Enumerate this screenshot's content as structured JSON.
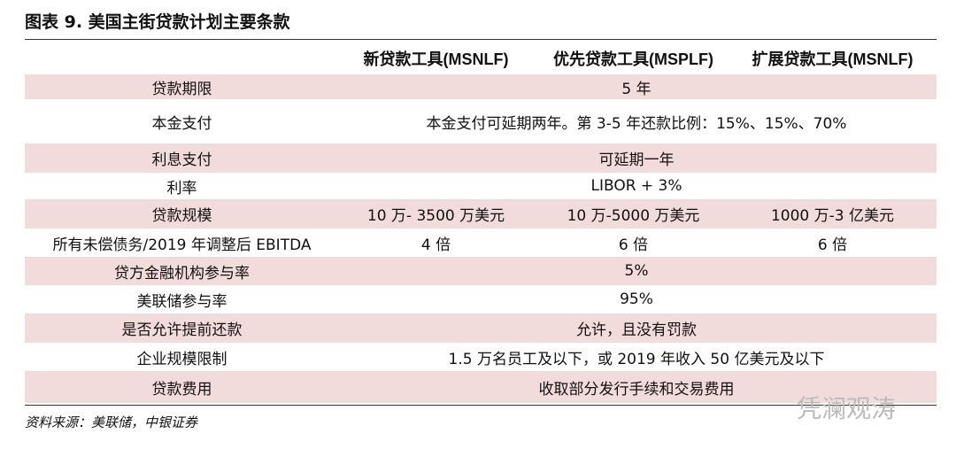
{
  "header": {
    "title": "图表 9. 美国主街贷款计划主要条款"
  },
  "table": {
    "columns": [
      "新贷款工具(MSNLF)",
      "优先贷款工具(MSPLF)",
      "扩展贷款工具(MSNLF)"
    ],
    "rows": [
      {
        "label": "贷款期限",
        "cells": [
          "5 年"
        ]
      },
      {
        "label": "本金支付",
        "cells": [
          "本金支付可延期两年。第 3-5 年还款比例：15%、15%、70%"
        ]
      },
      {
        "label": "利息支付",
        "cells": [
          "可延期一年"
        ]
      },
      {
        "label": "利率",
        "cells": [
          "LIBOR + 3%"
        ]
      },
      {
        "label": "贷款规模",
        "cells": [
          "10 万- 3500 万美元",
          "10 万-5000 万美元",
          "1000 万-3 亿美元"
        ]
      },
      {
        "label": "所有未偿债务/2019 年调整后 EBITDA",
        "cells": [
          "4 倍",
          "6 倍",
          "6 倍"
        ]
      },
      {
        "label": "贷方金融机构参与率",
        "cells": [
          "5%"
        ]
      },
      {
        "label": "美联储参与率",
        "cells": [
          "95%"
        ]
      },
      {
        "label": "是否允许提前还款",
        "cells": [
          "允许，且没有罚款"
        ]
      },
      {
        "label": "企业规模限制",
        "cells": [
          "1.5 万名员工及以下，或 2019 年收入 50 亿美元及以下"
        ]
      },
      {
        "label": "贷款费用",
        "cells": [
          "收取部分发行手续和交易费用"
        ]
      }
    ]
  },
  "source": "资料来源：美联储，中银证券",
  "watermark": "凭澜观涛"
}
